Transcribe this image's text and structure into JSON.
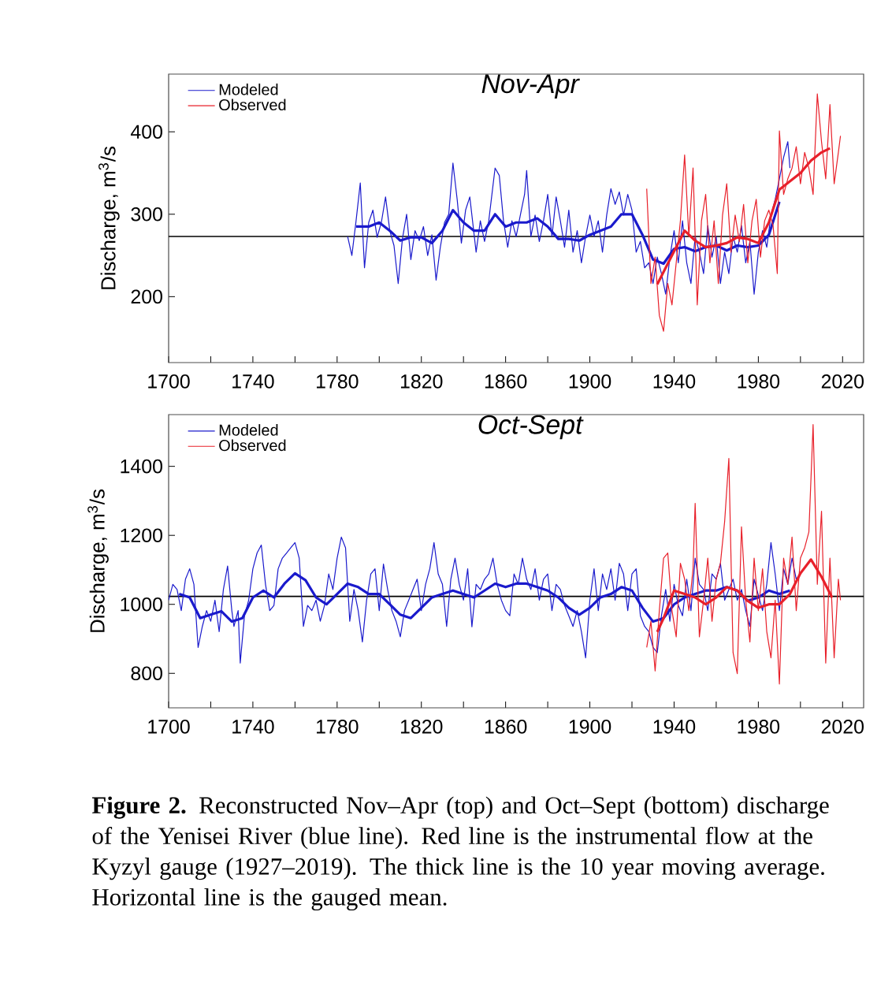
{
  "chart_data": [
    {
      "type": "line",
      "title": "Nov-Apr",
      "ylabel": "Discharge, m$^{3}$/s",
      "xlim": [
        1700,
        2030
      ],
      "ylim": [
        120,
        470
      ],
      "xticks": [
        1700,
        {
          "value": 1720,
          "label": null
        },
        1740,
        {
          "value": 1760,
          "label": null
        },
        1780,
        {
          "value": 1800,
          "label": null
        },
        1820,
        {
          "value": 1840,
          "label": null
        },
        1860,
        {
          "value": 1880,
          "label": null
        },
        1900,
        {
          "value": 1920,
          "label": null
        },
        1940,
        {
          "value": 1960,
          "label": null
        },
        1980,
        {
          "value": 2000,
          "label": null
        },
        2020
      ],
      "yticks": [
        200,
        300,
        400
      ],
      "legend": "top left",
      "marker": "none",
      "line_style": "solid",
      "ref_lines": [
        {
          "axis": "y",
          "value": 273,
          "color": "#000000"
        }
      ],
      "series": [
        {
          "name": "Observed",
          "color": "#e8202a",
          "x": [
            1927,
            1929,
            1931,
            1933,
            1935,
            1937,
            1939,
            1941,
            1943,
            1945,
            1947,
            1949,
            1951,
            1953,
            1955,
            1957,
            1959,
            1961,
            1963,
            1965,
            1967,
            1969,
            1971,
            1973,
            1975,
            1977,
            1979,
            1981,
            1983,
            1985,
            1987,
            1989,
            1990,
            1992,
            1994,
            1996,
            1998,
            2000,
            2002,
            2004,
            2006,
            2008,
            2010,
            2012,
            2014,
            2016,
            2018,
            2019
          ],
          "values": [
            331,
            216,
            248,
            177,
            158,
            216,
            190,
            241,
            292,
            372,
            273,
            356,
            190,
            292,
            324,
            241,
            292,
            216,
            299,
            337,
            254,
            299,
            267,
            312,
            241,
            292,
            318,
            248,
            292,
            305,
            286,
            228,
            401,
            324,
            343,
            356,
            382,
            337,
            375,
            356,
            324,
            446,
            388,
            343,
            433,
            337,
            375,
            395
          ]
        },
        {
          "name": "Modeled",
          "color": "#1a1acc",
          "x": [
            1785,
            1787,
            1789,
            1791,
            1793,
            1795,
            1797,
            1799,
            1801,
            1803,
            1805,
            1807,
            1809,
            1811,
            1813,
            1815,
            1817,
            1819,
            1821,
            1823,
            1825,
            1827,
            1829,
            1831,
            1833,
            1835,
            1837,
            1839,
            1841,
            1843,
            1846,
            1848,
            1850,
            1852,
            1855,
            1857,
            1859,
            1861,
            1863,
            1865,
            1867,
            1869,
            1870,
            1872,
            1874,
            1876,
            1878,
            1880,
            1882,
            1884,
            1886,
            1888,
            1890,
            1892,
            1894,
            1896,
            1898,
            1900,
            1902,
            1904,
            1906,
            1908,
            1910,
            1912,
            1914,
            1916,
            1918,
            1920,
            1922,
            1924,
            1926,
            1928,
            1930,
            1932,
            1934,
            1936,
            1938,
            1940,
            1942,
            1944,
            1946,
            1948,
            1950,
            1952,
            1954,
            1956,
            1958,
            1960,
            1962,
            1964,
            1966,
            1968,
            1970,
            1972,
            1974,
            1976,
            1978,
            1980,
            1982,
            1984,
            1986,
            1988,
            1990,
            1992,
            1994,
            1995
          ],
          "values": [
            273,
            250,
            292,
            338,
            235,
            290,
            305,
            272,
            290,
            321,
            280,
            262,
            216,
            270,
            300,
            245,
            280,
            268,
            285,
            250,
            275,
            220,
            260,
            290,
            300,
            362,
            318,
            265,
            305,
            321,
            254,
            292,
            267,
            292,
            356,
            347,
            292,
            260,
            292,
            273,
            299,
            324,
            353,
            273,
            299,
            267,
            292,
            324,
            273,
            321,
            292,
            260,
            305,
            254,
            280,
            241,
            273,
            299,
            273,
            292,
            254,
            299,
            331,
            312,
            327,
            299,
            324,
            305,
            254,
            267,
            235,
            241,
            216,
            248,
            228,
            203,
            248,
            280,
            241,
            292,
            241,
            216,
            273,
            254,
            228,
            286,
            248,
            273,
            216,
            254,
            228,
            273,
            254,
            286,
            241,
            267,
            203,
            254,
            280,
            260,
            299,
            318,
            343,
            369,
            388,
            356
          ]
        },
        {
          "color": "#1a1acc",
          "x": [
            1789,
            1795,
            1800,
            1805,
            1810,
            1815,
            1820,
            1825,
            1830,
            1835,
            1840,
            1845,
            1850,
            1855,
            1860,
            1865,
            1870,
            1875,
            1880,
            1885,
            1890,
            1895,
            1900,
            1905,
            1910,
            1915,
            1920,
            1925,
            1930,
            1935,
            1940,
            1945,
            1950,
            1955,
            1960,
            1965,
            1970,
            1975,
            1980,
            1985,
            1990
          ],
          "values": [
            285,
            285,
            290,
            280,
            268,
            272,
            272,
            265,
            280,
            305,
            290,
            280,
            280,
            300,
            285,
            290,
            290,
            295,
            285,
            270,
            270,
            268,
            275,
            280,
            285,
            300,
            300,
            275,
            245,
            240,
            258,
            260,
            255,
            260,
            262,
            256,
            262,
            260,
            262,
            275,
            315
          ]
        },
        {
          "color": "#e8202a",
          "x": [
            1932,
            1935,
            1940,
            1945,
            1950,
            1955,
            1960,
            1965,
            1970,
            1975,
            1980,
            1985,
            1990,
            1995,
            2000,
            2005,
            2010,
            2014
          ],
          "values": [
            215,
            230,
            255,
            280,
            268,
            260,
            262,
            265,
            272,
            270,
            265,
            290,
            330,
            340,
            350,
            365,
            375,
            380
          ]
        }
      ]
    },
    {
      "type": "line",
      "title": "Oct-Sept",
      "ylabel": "Discharge, m$^{3}$/s",
      "xlim": [
        1700,
        2030
      ],
      "ylim": [
        700,
        1550
      ],
      "xticks": [
        1700,
        {
          "value": 1720,
          "label": null
        },
        1740,
        {
          "value": 1760,
          "label": null
        },
        1780,
        {
          "value": 1800,
          "label": null
        },
        1820,
        {
          "value": 1840,
          "label": null
        },
        1860,
        {
          "value": 1880,
          "label": null
        },
        1900,
        {
          "value": 1920,
          "label": null
        },
        1940,
        {
          "value": 1960,
          "label": null
        },
        1980,
        {
          "value": 2000,
          "label": null
        },
        2020
      ],
      "yticks": [
        800,
        1000,
        1200,
        1400
      ],
      "legend": "top left",
      "marker": "none",
      "line_style": "solid",
      "ref_lines": [
        {
          "axis": "y",
          "value": 1023,
          "color": "#000000"
        }
      ],
      "annotations": [
        "**Figure 2.** Reconstructed Nov–Apr (top) and Oct–Sept (bottom) discharge of the Yenisei River (blue line). Red line is the instrumental flow at the Kyzyl gauge (1927–2019). The thick line is the 10 year moving average. Horizontal line is the gauged mean."
      ],
      "series": [
        {
          "name": "Observed",
          "color": "#e8202a",
          "x": [
            1927,
            1929,
            1931,
            1933,
            1935,
            1937,
            1939,
            1941,
            1943,
            1945,
            1947,
            1949,
            1950,
            1952,
            1954,
            1956,
            1958,
            1960,
            1962,
            1964,
            1966,
            1968,
            1970,
            1972,
            1974,
            1976,
            1978,
            1980,
            1982,
            1984,
            1986,
            1988,
            1990,
            1992,
            1994,
            1996,
            1998,
            2000,
            2002,
            2004,
            2006,
            2008,
            2010,
            2012,
            2014,
            2016,
            2018,
            2019
          ],
          "values": [
            875,
            951,
            807,
            982,
            1134,
            1149,
            982,
            906,
            1119,
            1073,
            982,
            1103,
            1293,
            906,
            1012,
            1134,
            951,
            1073,
            1119,
            1240,
            1423,
            860,
            799,
            1225,
            1012,
            891,
            1134,
            982,
            1103,
            921,
            845,
            1012,
            769,
            1134,
            1058,
            1195,
            982,
            1134,
            1164,
            1210,
            1521,
            1058,
            1270,
            830,
            1134,
            845,
            1073,
            1012
          ]
        },
        {
          "name": "Modeled",
          "color": "#1a1acc",
          "x": [
            1700,
            1702,
            1704,
            1706,
            1708,
            1710,
            1712,
            1714,
            1716,
            1718,
            1720,
            1722,
            1724,
            1726,
            1728,
            1730,
            1731,
            1733,
            1734,
            1736,
            1738,
            1740,
            1742,
            1744,
            1746,
            1748,
            1750,
            1752,
            1754,
            1756,
            1758,
            1760,
            1762,
            1764,
            1766,
            1768,
            1770,
            1772,
            1774,
            1776,
            1778,
            1780,
            1782,
            1784,
            1786,
            1788,
            1790,
            1792,
            1794,
            1796,
            1798,
            1800,
            1802,
            1804,
            1806,
            1808,
            1810,
            1812,
            1814,
            1816,
            1818,
            1820,
            1822,
            1824,
            1826,
            1828,
            1830,
            1832,
            1834,
            1836,
            1838,
            1840,
            1842,
            1844,
            1846,
            1848,
            1850,
            1852,
            1854,
            1856,
            1858,
            1860,
            1862,
            1864,
            1866,
            1868,
            1870,
            1872,
            1874,
            1876,
            1878,
            1880,
            1882,
            1884,
            1886,
            1888,
            1890,
            1892,
            1894,
            1896,
            1898,
            1900,
            1902,
            1904,
            1906,
            1908,
            1910,
            1912,
            1914,
            1916,
            1918,
            1920,
            1922,
            1924,
            1926,
            1928,
            1930,
            1932,
            1934,
            1936,
            1938,
            1940,
            1942,
            1944,
            1946,
            1948,
            1950,
            1952,
            1954,
            1956,
            1958,
            1960,
            1962,
            1964,
            1966,
            1968,
            1970,
            1972,
            1974,
            1976,
            1978,
            1980,
            1982,
            1984,
            1986,
            1988,
            1990,
            1992,
            1994,
            1996,
            1998,
            2000
          ],
          "values": [
            1012,
            1058,
            1043,
            982,
            1073,
            1103,
            1058,
            875,
            936,
            982,
            951,
            1012,
            921,
            1043,
            1111,
            982,
            936,
            982,
            830,
            967,
            1012,
            1103,
            1149,
            1172,
            1058,
            982,
            997,
            1103,
            1134,
            1149,
            1164,
            1179,
            1134,
            936,
            997,
            982,
            1012,
            951,
            997,
            1088,
            1043,
            1134,
            1195,
            1164,
            951,
            1043,
            982,
            891,
            1012,
            1088,
            1103,
            982,
            1117,
            1043,
            982,
            951,
            906,
            982,
            1012,
            1043,
            1073,
            982,
            1058,
            1103,
            1179,
            1088,
            1058,
            936,
            1073,
            1134,
            1058,
            1012,
            1103,
            935,
            1058,
            1043,
            1073,
            1088,
            1134,
            1058,
            1012,
            982,
            967,
            1088,
            1058,
            1134,
            1073,
            1043,
            1103,
            1012,
            1073,
            1088,
            982,
            1058,
            1043,
            997,
            967,
            936,
            982,
            921,
            845,
            1012,
            1103,
            982,
            1088,
            1043,
            1103,
            1012,
            1119,
            1088,
            982,
            1088,
            1103,
            967,
            936,
            921,
            875,
            860,
            967,
            1043,
            951,
            1058,
            997,
            967,
            1073,
            982,
            1134,
            1058,
            1043,
            982,
            1088,
            1073,
            1119,
            1012,
            1043,
            1073,
            1012,
            1043,
            982,
            936,
            1073,
            1027,
            982,
            1058,
            1179,
            1088,
            982,
            1103,
            1058,
            1134,
            1073,
            1088
          ]
        },
        {
          "color": "#1a1acc",
          "x": [
            1705,
            1710,
            1715,
            1720,
            1725,
            1730,
            1735,
            1740,
            1745,
            1750,
            1755,
            1760,
            1765,
            1770,
            1775,
            1780,
            1785,
            1790,
            1795,
            1800,
            1805,
            1810,
            1815,
            1820,
            1825,
            1830,
            1835,
            1840,
            1845,
            1850,
            1855,
            1860,
            1865,
            1870,
            1875,
            1880,
            1885,
            1890,
            1895,
            1900,
            1905,
            1910,
            1915,
            1920,
            1925,
            1930,
            1935,
            1940,
            1945,
            1950,
            1955,
            1960,
            1965,
            1970,
            1975,
            1980,
            1985,
            1990,
            1995
          ],
          "values": [
            1030,
            1020,
            960,
            970,
            980,
            950,
            960,
            1020,
            1040,
            1020,
            1060,
            1090,
            1070,
            1020,
            1000,
            1030,
            1060,
            1050,
            1030,
            1030,
            1000,
            970,
            960,
            990,
            1020,
            1030,
            1040,
            1030,
            1020,
            1040,
            1060,
            1050,
            1060,
            1060,
            1050,
            1040,
            1020,
            990,
            970,
            990,
            1020,
            1030,
            1050,
            1040,
            990,
            950,
            960,
            1000,
            1020,
            1030,
            1040,
            1040,
            1050,
            1040,
            1010,
            1020,
            1040,
            1030,
            1040
          ]
        },
        {
          "color": "#e8202a",
          "x": [
            1932,
            1935,
            1940,
            1945,
            1950,
            1955,
            1960,
            1965,
            1970,
            1975,
            1980,
            1985,
            1990,
            1995,
            2000,
            2005,
            2010,
            2015
          ],
          "values": [
            920,
            960,
            1040,
            1030,
            1020,
            1000,
            1020,
            1050,
            1040,
            1010,
            990,
            1000,
            1000,
            1030,
            1090,
            1130,
            1080,
            1020
          ]
        }
      ]
    }
  ]
}
